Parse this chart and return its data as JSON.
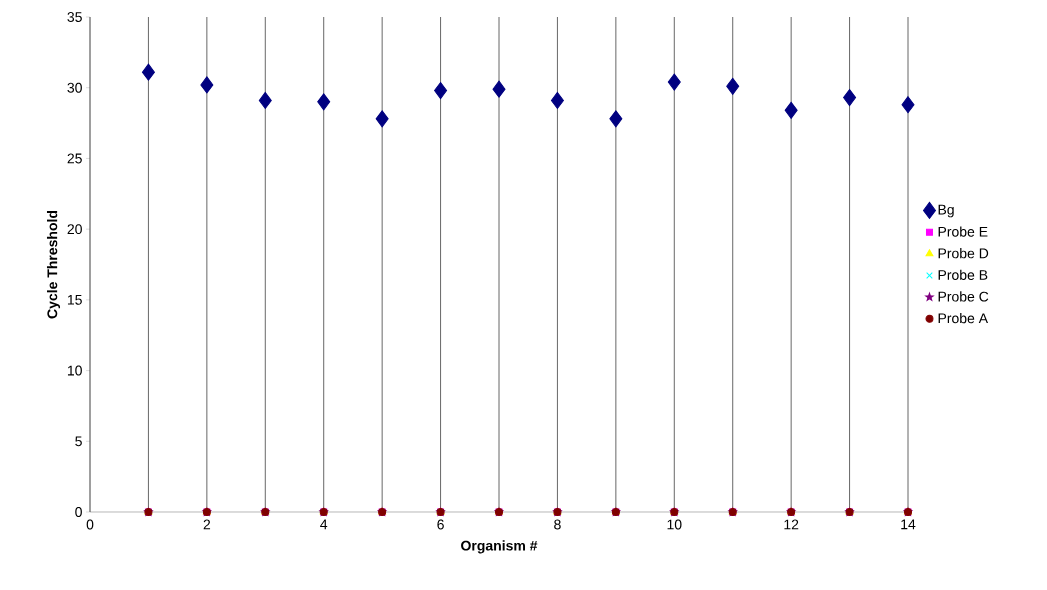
{
  "chart_data": {
    "type": "scatter",
    "xlabel": "Organism #",
    "ylabel": "Cycle Threshold",
    "x": [
      1,
      2,
      3,
      4,
      5,
      6,
      7,
      8,
      9,
      10,
      11,
      12,
      13,
      14
    ],
    "series": [
      {
        "name": "Bg",
        "color": "#000080",
        "marker": "diamond",
        "values": [
          31.1,
          30.2,
          29.1,
          29.0,
          27.8,
          29.8,
          29.9,
          29.1,
          27.8,
          30.4,
          30.1,
          28.4,
          29.3,
          28.8
        ]
      },
      {
        "name": "Probe E",
        "color": "#ff00ff",
        "marker": "square",
        "values": [
          0,
          0,
          0,
          0,
          0,
          0,
          0,
          0,
          0,
          0,
          0,
          0,
          0,
          0
        ]
      },
      {
        "name": "Probe D",
        "color": "#ffff00",
        "marker": "triangle",
        "values": [
          0,
          0,
          0,
          0,
          0,
          0,
          0,
          0,
          0,
          0,
          0,
          0,
          0,
          0
        ]
      },
      {
        "name": "Probe B",
        "color": "#00ffff",
        "marker": "cross",
        "values": [
          0,
          0,
          0,
          0,
          0,
          0,
          0,
          0,
          0,
          0,
          0,
          0,
          0,
          0
        ]
      },
      {
        "name": "Probe C",
        "color": "#800080",
        "marker": "star",
        "values": [
          0,
          0,
          0,
          0,
          0,
          0,
          0,
          0,
          0,
          0,
          0,
          0,
          0,
          0
        ]
      },
      {
        "name": "Probe A",
        "color": "#800000",
        "marker": "circle",
        "values": [
          0,
          0,
          0,
          0,
          0,
          0,
          0,
          0,
          0,
          0,
          0,
          0,
          0,
          0
        ]
      }
    ],
    "xlim": [
      0,
      14
    ],
    "ylim": [
      0,
      35
    ],
    "xticks": [
      0,
      {
        "value": 1,
        "label": null
      },
      2,
      {
        "value": 3,
        "label": null
      },
      4,
      {
        "value": 5,
        "label": null
      },
      6,
      {
        "value": 7,
        "label": null
      },
      8,
      {
        "value": 9,
        "label": null
      },
      10,
      {
        "value": 11,
        "label": null
      },
      12,
      {
        "value": 13,
        "label": null
      },
      14
    ],
    "yticks": [
      0,
      5,
      10,
      15,
      20,
      25,
      30,
      35
    ],
    "grid": "x",
    "legend": "right"
  }
}
